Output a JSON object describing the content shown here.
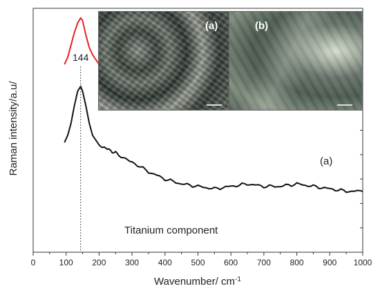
{
  "chart_data": {
    "type": "line",
    "title": "",
    "xlabel": "Wavenumber/ cm",
    "xlabel_sup": "-1",
    "ylabel": "Raman intensity/a.u/",
    "xlim": [
      0,
      1000
    ],
    "ylim": [
      0,
      1
    ],
    "xticks": [
      "0",
      "100",
      "200",
      "300",
      "400",
      "500",
      "600",
      "700",
      "800",
      "900",
      "1000"
    ],
    "grid": false,
    "yticks_labeled": false,
    "annotations": {
      "peak_label": "144",
      "peak_x": 144,
      "component": "Titanium component"
    },
    "series": [
      {
        "name": "(b)",
        "color": "#e82020",
        "x": [
          95,
          105,
          115,
          125,
          135,
          144,
          150,
          160,
          170,
          180,
          200,
          230,
          260,
          300,
          350,
          400,
          450,
          500,
          550,
          600,
          650,
          700,
          750,
          800,
          850,
          900,
          950,
          1000
        ],
        "y": [
          0.77,
          0.8,
          0.85,
          0.9,
          0.94,
          0.96,
          0.95,
          0.89,
          0.84,
          0.81,
          0.77,
          0.75,
          0.73,
          0.71,
          0.68,
          0.66,
          0.64,
          0.64,
          0.63,
          0.64,
          0.64,
          0.63,
          0.64,
          0.63,
          0.62,
          0.61,
          0.6,
          0.6
        ]
      },
      {
        "name": "(a)",
        "color": "#111111",
        "x": [
          95,
          105,
          115,
          125,
          135,
          144,
          150,
          160,
          170,
          180,
          200,
          230,
          260,
          300,
          350,
          400,
          450,
          500,
          550,
          600,
          650,
          700,
          750,
          800,
          850,
          900,
          950,
          1000
        ],
        "y": [
          0.45,
          0.48,
          0.53,
          0.6,
          0.66,
          0.68,
          0.66,
          0.6,
          0.53,
          0.48,
          0.44,
          0.42,
          0.4,
          0.37,
          0.33,
          0.3,
          0.28,
          0.27,
          0.26,
          0.27,
          0.28,
          0.27,
          0.27,
          0.28,
          0.27,
          0.26,
          0.25,
          0.25
        ]
      }
    ],
    "series_labels": [
      {
        "text": "(b)",
        "x": 870,
        "y": 0.67
      },
      {
        "text": "(a)",
        "x": 870,
        "y": 0.36
      }
    ]
  },
  "insets": [
    {
      "label": "(a)",
      "bg": "#4a5248"
    },
    {
      "label": "(b)",
      "bg": "#5d6a5e"
    }
  ]
}
